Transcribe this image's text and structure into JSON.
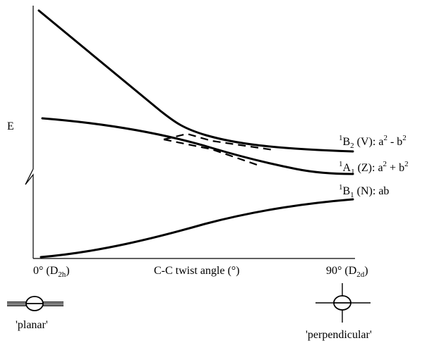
{
  "y_axis_label": "E",
  "x_axis": {
    "left_label": "0°",
    "left_symmetry": "D",
    "left_symmetry_sub": "2h",
    "center_label": "C-C twist angle (°)",
    "right_label": "90°",
    "right_symmetry": "D",
    "right_symmetry_sub": "2d"
  },
  "states": [
    {
      "sup": "1",
      "letter": "B",
      "sub": "2",
      "name": "(V):",
      "formula_a": "a",
      "a_exp": "2",
      "op": "-",
      "formula_b": "b",
      "b_exp": "2"
    },
    {
      "sup": "1",
      "letter": "A",
      "sub": "1",
      "name": "(Z):",
      "formula_a": "a",
      "a_exp": "2",
      "op": "+",
      "formula_b": "b",
      "b_exp": "2"
    },
    {
      "sup": "1",
      "letter": "B",
      "sub": "1",
      "name": "(N):",
      "formula": "ab"
    }
  ],
  "geometries": {
    "left_caption": "'planar'",
    "right_caption": "'perpendicular'"
  }
}
